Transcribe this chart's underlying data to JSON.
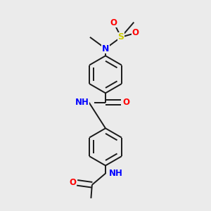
{
  "bg_color": "#ebebeb",
  "bond_color": "#1a1a1a",
  "bond_width": 1.4,
  "atom_colors": {
    "N": "#0000ff",
    "O": "#ff0000",
    "S": "#cccc00",
    "C": "#1a1a1a",
    "H": "#336666"
  },
  "font_size": 8.5,
  "figsize": [
    3.0,
    3.0
  ],
  "dpi": 100
}
